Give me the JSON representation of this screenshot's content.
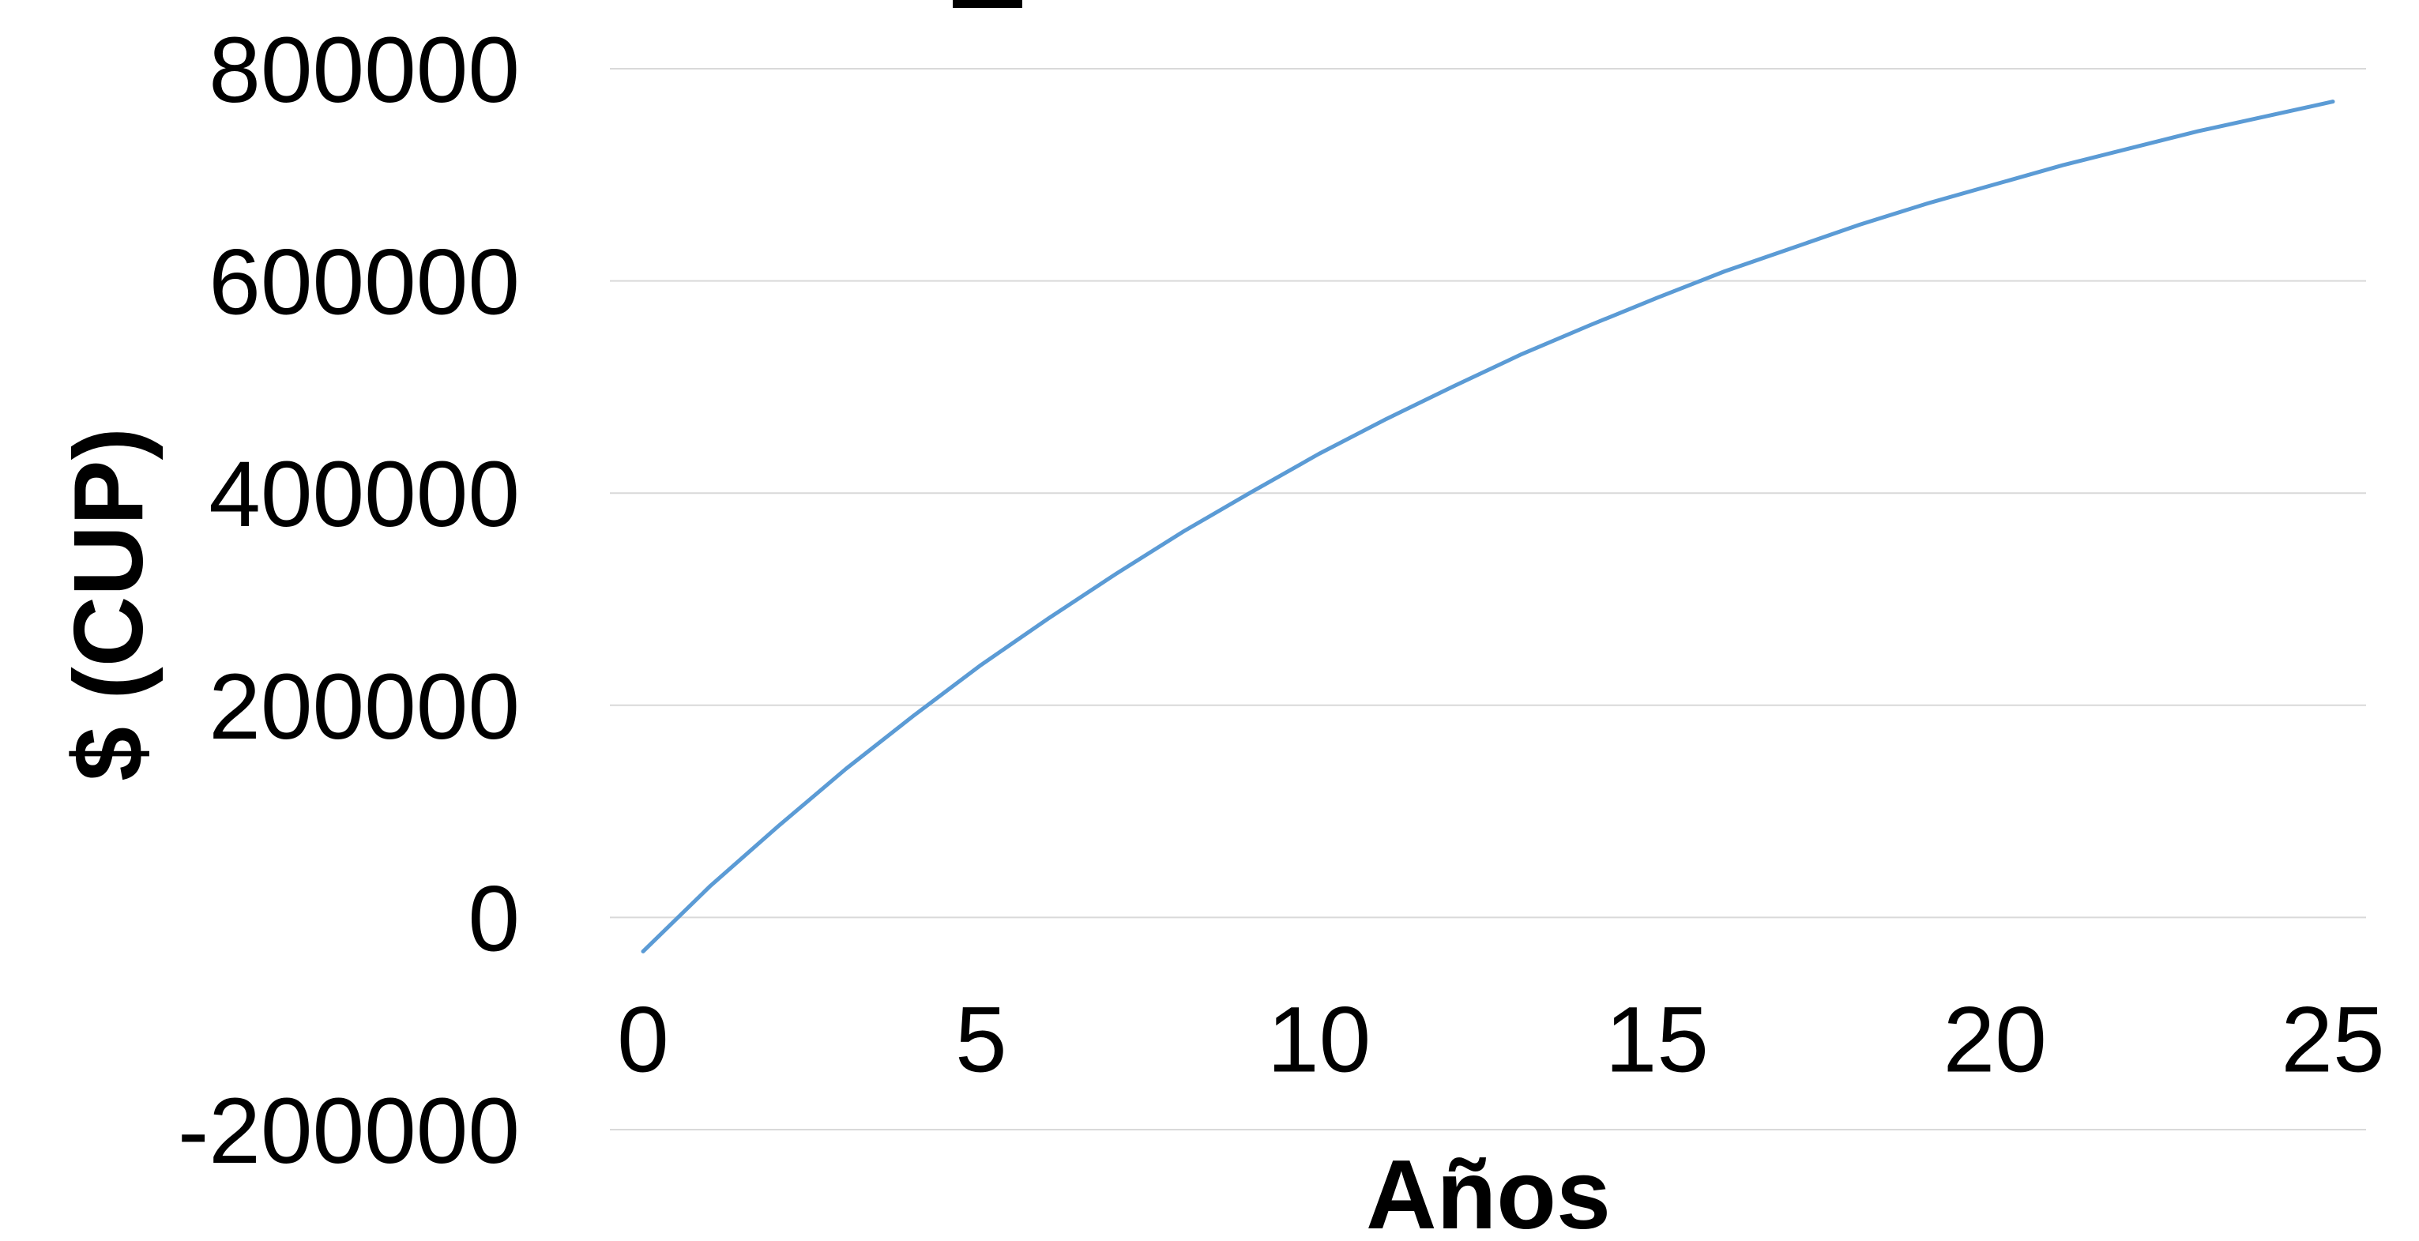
{
  "chart_data": {
    "type": "line",
    "xlabel": "Años",
    "ylabel": "$ (CUP)",
    "xlim": [
      0,
      25
    ],
    "ylim": [
      -200000,
      800000
    ],
    "x_ticks": [
      "0",
      "5",
      "10",
      "15",
      "20",
      "25"
    ],
    "y_ticks": [
      "800000",
      "600000",
      "400000",
      "200000",
      "0",
      "-200000"
    ],
    "grid": true,
    "legend": "none",
    "series_color": "#5b9bd5",
    "series": [
      {
        "x": [
          0,
          1,
          2,
          3,
          4,
          5,
          6,
          7,
          8,
          9,
          10,
          11,
          12,
          13,
          14,
          15,
          16,
          17,
          18,
          19,
          20,
          21,
          22,
          23,
          24,
          25
        ],
        "values": [
          -32000,
          30000,
          86000,
          140000,
          190000,
          238000,
          282000,
          324000,
          364000,
          401000,
          437000,
          470000,
          501000,
          531000,
          558000,
          584000,
          609000,
          631000,
          653000,
          673000,
          691000,
          709000,
          725000,
          741000,
          755000,
          769000
        ]
      }
    ]
  }
}
